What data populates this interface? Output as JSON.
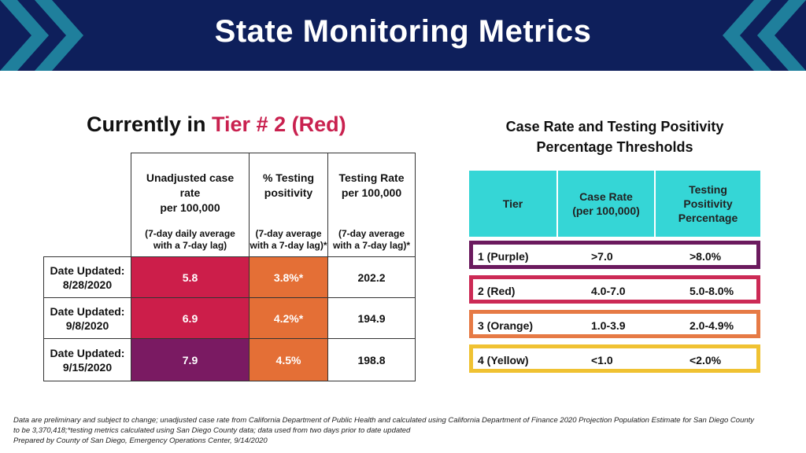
{
  "header": {
    "title": "State Monitoring Metrics"
  },
  "left": {
    "title_prefix": "Currently in ",
    "title_tier": "Tier # 2 (Red)",
    "columns": [
      {
        "label_lines": [
          "Unadjusted case",
          "rate",
          "per 100,000"
        ],
        "sub_lines": [
          "(7-day daily average",
          "with a 7-day lag)"
        ]
      },
      {
        "label_lines": [
          "% Testing",
          "positivity"
        ],
        "sub_lines": [
          "(7-day average",
          "with a 7-day lag)*"
        ]
      },
      {
        "label_lines": [
          "Testing Rate",
          "per 100,000"
        ],
        "sub_lines": [
          "(7-day average",
          "with a 7-day lag)*"
        ]
      }
    ],
    "rows": [
      {
        "label1": "Date Updated:",
        "label2": "8/28/2020",
        "case_rate": "5.8",
        "positivity": "3.8%*",
        "testing_rate": "202.2"
      },
      {
        "label1": "Date Updated:",
        "label2": "9/8/2020",
        "case_rate": "6.9",
        "positivity": "4.2%*",
        "testing_rate": "194.9"
      },
      {
        "label1": "Date Updated:",
        "label2": "9/15/2020",
        "case_rate": "7.9",
        "positivity": "4.5%",
        "testing_rate": "198.8"
      }
    ]
  },
  "right": {
    "title_line1": "Case Rate and Testing Positivity",
    "title_line2": "Percentage Thresholds",
    "headers": [
      {
        "lines": [
          "Tier"
        ]
      },
      {
        "lines": [
          "Case Rate",
          "(per 100,000)"
        ]
      },
      {
        "lines": [
          "Testing",
          "Positivity",
          "Percentage"
        ]
      }
    ],
    "tiers": [
      {
        "tier": "1 (Purple)",
        "case_rate": ">7.0",
        "positivity": ">8.0%"
      },
      {
        "tier": "2 (Red)",
        "case_rate": "4.0-7.0",
        "positivity": "5.0-8.0%"
      },
      {
        "tier": "3 (Orange)",
        "case_rate": "1.0-3.9",
        "positivity": "2.0-4.9%"
      },
      {
        "tier": "4 (Yellow)",
        "case_rate": "<1.0",
        "positivity": "<2.0%"
      }
    ]
  },
  "footnote": {
    "line1": "Data are preliminary and subject to change; unadjusted case rate from California Department of Public Health and calculated using California Department of Finance 2020 Projection Population Estimate for San Diego County",
    "line2": "to be 3,370,418;*testing metrics calculated using San Diego County data; data used from two days prior to date updated",
    "line3": "Prepared by County of San Diego, Emergency Operations Center, 9/14/2020"
  },
  "colors": {
    "header_bg": "#0e1f5b",
    "chevron_teal": "#1f7f9c",
    "red": "#cc1e4a",
    "purple": "#7a1a62",
    "orange": "#e46f36",
    "tier_title_red": "#c9214f",
    "table_head_teal": "#35d6d6",
    "tier1_border": "#6b1a5e",
    "tier2_border": "#cc2a55",
    "tier3_border": "#e67a45",
    "tier4_border": "#f0c232"
  }
}
